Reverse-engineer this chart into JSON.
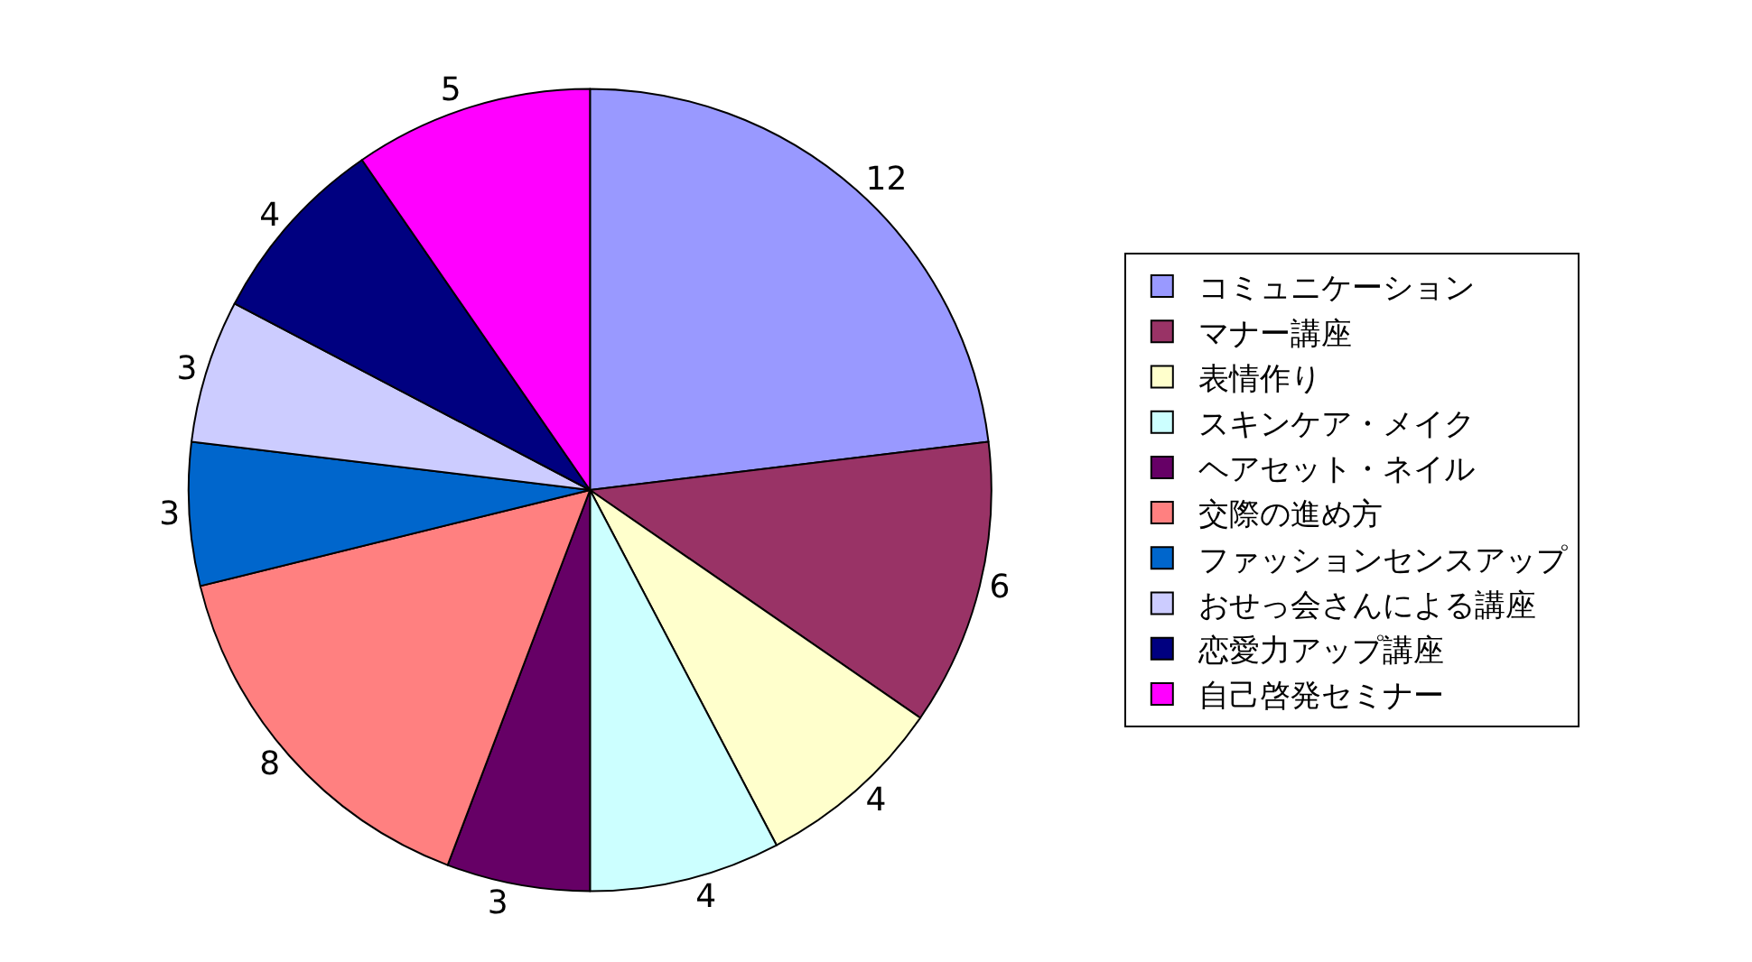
{
  "chart_data": {
    "type": "pie",
    "categories": [
      "コミュニケーション",
      "マナー講座",
      "表情作り",
      "スキンケア・メイク",
      "ヘアセット・ネイル",
      "交際の進め方",
      "ファッションセンスアップ",
      "おせっ会さんによる講座",
      "恋愛力アップ講座",
      "自己啓発セミナー"
    ],
    "values": [
      12,
      6,
      4,
      4,
      3,
      8,
      3,
      3,
      4,
      5
    ],
    "colors": [
      "#9999ff",
      "#993366",
      "#ffffcc",
      "#ccffff",
      "#660066",
      "#ff8080",
      "#0066cc",
      "#ccccff",
      "#000080",
      "#ff00ff"
    ],
    "data_labels": true,
    "legend": "right"
  }
}
